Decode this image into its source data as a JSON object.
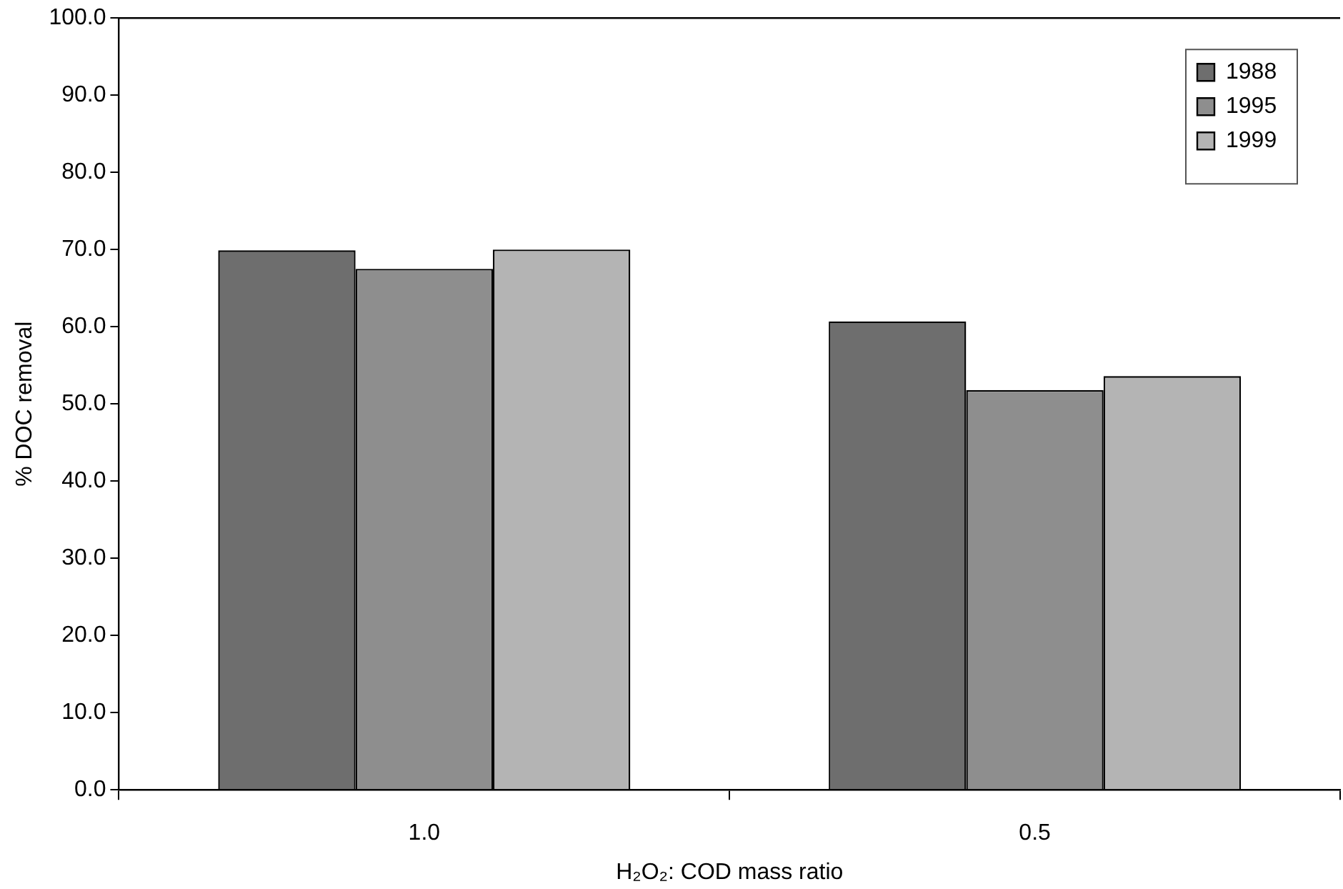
{
  "chart_data": {
    "type": "bar",
    "xlabel": "H₂O₂: COD mass ratio",
    "ylabel": "% DOC removal",
    "categories": [
      "1.0",
      "0.5"
    ],
    "series": [
      {
        "name": "1988",
        "color": "#6e6e6e",
        "values": [
          69.9,
          60.7
        ]
      },
      {
        "name": "1995",
        "color": "#8e8e8e",
        "values": [
          67.5,
          51.8
        ]
      },
      {
        "name": "1999",
        "color": "#b4b4b4",
        "values": [
          70.0,
          53.6
        ]
      }
    ],
    "ylim": [
      0,
      100
    ],
    "yticks": [
      {
        "value": 0,
        "label": "0.0"
      },
      {
        "value": 10,
        "label": "10.0"
      },
      {
        "value": 20,
        "label": "20.0"
      },
      {
        "value": 30,
        "label": "30.0"
      },
      {
        "value": 40,
        "label": "40.0"
      },
      {
        "value": 50,
        "label": "50.0"
      },
      {
        "value": 60,
        "label": "60.0"
      },
      {
        "value": 70,
        "label": "70.0"
      },
      {
        "value": 80,
        "label": "80.0"
      },
      {
        "value": 90,
        "label": "90.0"
      },
      {
        "value": 100,
        "label": "100.0"
      }
    ],
    "grid": false,
    "legend": "top right"
  }
}
